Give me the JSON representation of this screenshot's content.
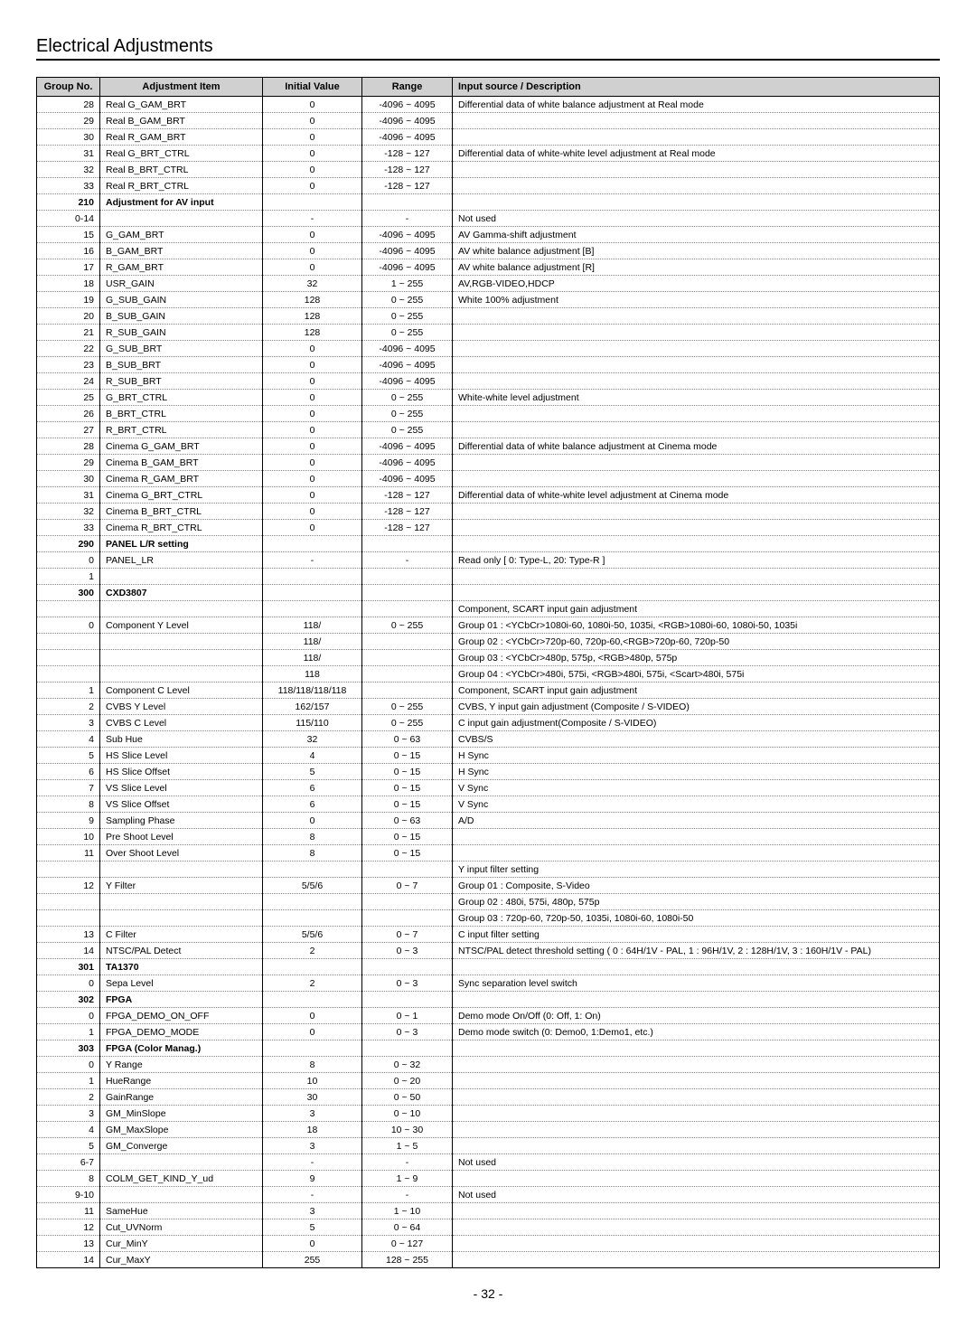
{
  "page_title": "Electrical Adjustments",
  "page_number": "- 32 -",
  "headers": {
    "group": "Group No.",
    "item": "Adjustment Item",
    "init": "Initial Value",
    "range": "Range",
    "desc": "Input source / Description"
  },
  "rows": [
    {
      "g": "28",
      "i": "Real G_GAM_BRT",
      "v": "0",
      "r": "-4096 ~ 4095",
      "d": "Differential data of white balance adjustment at Real mode"
    },
    {
      "g": "29",
      "i": "Real B_GAM_BRT",
      "v": "0",
      "r": "-4096 ~ 4095",
      "d": ""
    },
    {
      "g": "30",
      "i": "Real R_GAM_BRT",
      "v": "0",
      "r": "-4096 ~ 4095",
      "d": ""
    },
    {
      "g": "31",
      "i": "Real G_BRT_CTRL",
      "v": "0",
      "r": "-128 ~ 127",
      "d": "Differential data of white-white level adjustment at Real mode"
    },
    {
      "g": "32",
      "i": "Real B_BRT_CTRL",
      "v": "0",
      "r": "-128 ~ 127",
      "d": ""
    },
    {
      "g": "33",
      "i": "Real R_BRT_CTRL",
      "v": "0",
      "r": "-128 ~ 127",
      "d": ""
    },
    {
      "g": "210",
      "i": "Adjustment for AV input",
      "v": "",
      "r": "",
      "d": "",
      "bold": true,
      "gb": true
    },
    {
      "g": "0-14",
      "i": "",
      "v": "-",
      "r": "-",
      "d": "Not used"
    },
    {
      "g": "15",
      "i": "G_GAM_BRT",
      "v": "0",
      "r": "-4096 ~ 4095",
      "d": "AV Gamma-shift adjustment"
    },
    {
      "g": "16",
      "i": "B_GAM_BRT",
      "v": "0",
      "r": "-4096 ~ 4095",
      "d": "AV white balance adjustment [B]"
    },
    {
      "g": "17",
      "i": "R_GAM_BRT",
      "v": "0",
      "r": "-4096 ~ 4095",
      "d": "AV white balance adjustment [R]"
    },
    {
      "g": "18",
      "i": "USR_GAIN",
      "v": "32",
      "r": "1 ~ 255",
      "d": "AV,RGB-VIDEO,HDCP"
    },
    {
      "g": "19",
      "i": "G_SUB_GAIN",
      "v": "128",
      "r": "0 ~ 255",
      "d": "White 100% adjustment"
    },
    {
      "g": "20",
      "i": "B_SUB_GAIN",
      "v": "128",
      "r": "0 ~ 255",
      "d": ""
    },
    {
      "g": "21",
      "i": "R_SUB_GAIN",
      "v": "128",
      "r": "0 ~ 255",
      "d": ""
    },
    {
      "g": "22",
      "i": "G_SUB_BRT",
      "v": "0",
      "r": "-4096 ~ 4095",
      "d": ""
    },
    {
      "g": "23",
      "i": "B_SUB_BRT",
      "v": "0",
      "r": "-4096 ~ 4095",
      "d": ""
    },
    {
      "g": "24",
      "i": "R_SUB_BRT",
      "v": "0",
      "r": "-4096 ~ 4095",
      "d": ""
    },
    {
      "g": "25",
      "i": "G_BRT_CTRL",
      "v": "0",
      "r": "0 ~ 255",
      "d": "White-white level adjustment"
    },
    {
      "g": "26",
      "i": "B_BRT_CTRL",
      "v": "0",
      "r": "0 ~ 255",
      "d": ""
    },
    {
      "g": "27",
      "i": "R_BRT_CTRL",
      "v": "0",
      "r": "0 ~ 255",
      "d": ""
    },
    {
      "g": "28",
      "i": "Cinema G_GAM_BRT",
      "v": "0",
      "r": "-4096 ~ 4095",
      "d": "Differential data of white balance adjustment at Cinema mode"
    },
    {
      "g": "29",
      "i": "Cinema B_GAM_BRT",
      "v": "0",
      "r": "-4096 ~ 4095",
      "d": ""
    },
    {
      "g": "30",
      "i": "Cinema R_GAM_BRT",
      "v": "0",
      "r": "-4096 ~ 4095",
      "d": ""
    },
    {
      "g": "31",
      "i": "Cinema G_BRT_CTRL",
      "v": "0",
      "r": "-128 ~ 127",
      "d": "Differential data of white-white level adjustment at Cinema mode"
    },
    {
      "g": "32",
      "i": "Cinema B_BRT_CTRL",
      "v": "0",
      "r": "-128 ~ 127",
      "d": ""
    },
    {
      "g": "33",
      "i": "Cinema R_BRT_CTRL",
      "v": "0",
      "r": "-128 ~ 127",
      "d": ""
    },
    {
      "g": "290",
      "i": "PANEL L/R setting",
      "v": "",
      "r": "",
      "d": "",
      "bold": true,
      "gb": true
    },
    {
      "g": "0",
      "i": "PANEL_LR",
      "v": "-",
      "r": "-",
      "d": "Read only [ 0: Type-L, 20: Type-R ]"
    },
    {
      "g": "1",
      "i": "",
      "v": "",
      "r": "",
      "d": ""
    },
    {
      "g": "300",
      "i": "CXD3807",
      "v": "",
      "r": "",
      "d": "",
      "bold": true,
      "gb": true
    },
    {
      "g": "",
      "i": "",
      "v": "",
      "r": "",
      "d": "Component, SCART input gain adjustment"
    },
    {
      "g": "0",
      "i": "Component Y Level",
      "v": "118/",
      "r": "0 ~ 255",
      "d": "  Group 01 : <YCbCr>1080i-60, 1080i-50, 1035i, <RGB>1080i-60, 1080i-50, 1035i"
    },
    {
      "g": "",
      "i": "",
      "v": "118/",
      "r": "",
      "d": "  Group 02 : <YCbCr>720p-60, 720p-60,<RGB>720p-60, 720p-50"
    },
    {
      "g": "",
      "i": "",
      "v": "118/",
      "r": "",
      "d": "  Group 03 : <YCbCr>480p, 575p, <RGB>480p, 575p"
    },
    {
      "g": "",
      "i": "",
      "v": "118",
      "r": "",
      "d": "  Group 04 : <YCbCr>480i, 575i, <RGB>480i, 575i, <Scart>480i, 575i"
    },
    {
      "g": "1",
      "i": "Component C Level",
      "v": "118/118/118/118",
      "r": "",
      "d": "Component, SCART input gain adjustment"
    },
    {
      "g": "2",
      "i": "CVBS Y Level",
      "v": "162/157",
      "r": "0 ~ 255",
      "d": "CVBS, Y input gain adjustment (Composite / S-VIDEO)"
    },
    {
      "g": "3",
      "i": "CVBS C Level",
      "v": "115/110",
      "r": "0 ~ 255",
      "d": "C input gain adjustment(Composite / S-VIDEO)"
    },
    {
      "g": "4",
      "i": "Sub Hue",
      "v": "32",
      "r": "0 ~ 63",
      "d": "CVBS/S"
    },
    {
      "g": "5",
      "i": "HS Slice Level",
      "v": "4",
      "r": "0 ~ 15",
      "d": "H Sync"
    },
    {
      "g": "6",
      "i": "HS Slice Offset",
      "v": "5",
      "r": "0 ~ 15",
      "d": "H Sync"
    },
    {
      "g": "7",
      "i": "VS Slice Level",
      "v": "6",
      "r": "0 ~ 15",
      "d": "V Sync"
    },
    {
      "g": "8",
      "i": "VS Slice Offset",
      "v": "6",
      "r": "0 ~ 15",
      "d": "V Sync"
    },
    {
      "g": "9",
      "i": "Sampling Phase",
      "v": "0",
      "r": "0 ~ 63",
      "d": "A/D"
    },
    {
      "g": "10",
      "i": "Pre Shoot Level",
      "v": "8",
      "r": "0 ~ 15",
      "d": ""
    },
    {
      "g": "11",
      "i": "Over Shoot Level",
      "v": "8",
      "r": "0 ~ 15",
      "d": ""
    },
    {
      "g": "",
      "i": "",
      "v": "",
      "r": "",
      "d": "Y input filter setting"
    },
    {
      "g": "12",
      "i": "Y Filter",
      "v": "5/5/6",
      "r": "0 ~ 7",
      "d": "  Group 01 : Composite, S-Video"
    },
    {
      "g": "",
      "i": "",
      "v": "",
      "r": "",
      "d": "  Group 02 : 480i, 575i, 480p, 575p"
    },
    {
      "g": "",
      "i": "",
      "v": "",
      "r": "",
      "d": "  Group 03 : 720p-60, 720p-50, 1035i, 1080i-60, 1080i-50"
    },
    {
      "g": "13",
      "i": "C Filter",
      "v": "5/5/6",
      "r": "0 ~ 7",
      "d": "C input filter setting"
    },
    {
      "g": "14",
      "i": "NTSC/PAL Detect",
      "v": "2",
      "r": "0 ~ 3",
      "d": "NTSC/PAL detect threshold setting ( 0 : 64H/1V  - PAL, 1 : 96H/1V,  2 : 128H/1V, 3 : 160H/1V - PAL)"
    },
    {
      "g": "301",
      "i": "TA1370",
      "v": "",
      "r": "",
      "d": "",
      "bold": true,
      "gb": true
    },
    {
      "g": "0",
      "i": "Sepa Level",
      "v": "2",
      "r": "0 ~ 3",
      "d": "Sync separation level switch"
    },
    {
      "g": "302",
      "i": "FPGA",
      "v": "",
      "r": "",
      "d": "",
      "bold": true,
      "gb": true
    },
    {
      "g": "0",
      "i": "FPGA_DEMO_ON_OFF",
      "v": "0",
      "r": "0 ~ 1",
      "d": "Demo mode On/Off (0: Off, 1: On)"
    },
    {
      "g": "1",
      "i": "FPGA_DEMO_MODE",
      "v": "0",
      "r": "0 ~ 3",
      "d": "Demo mode switch (0: Demo0, 1:Demo1, etc.)"
    },
    {
      "g": "303",
      "i": "FPGA (Color Manag.)",
      "v": "",
      "r": "",
      "d": "",
      "bold": true,
      "gb": true
    },
    {
      "g": "0",
      "i": "Y Range",
      "v": "8",
      "r": "0 ~ 32",
      "d": ""
    },
    {
      "g": "1",
      "i": "HueRange",
      "v": "10",
      "r": "0 ~ 20",
      "d": ""
    },
    {
      "g": "2",
      "i": "GainRange",
      "v": "30",
      "r": "0 ~ 50",
      "d": ""
    },
    {
      "g": "3",
      "i": "GM_MinSlope",
      "v": "3",
      "r": "0 ~ 10",
      "d": ""
    },
    {
      "g": "4",
      "i": "GM_MaxSlope",
      "v": "18",
      "r": "10 ~ 30",
      "d": ""
    },
    {
      "g": "5",
      "i": "GM_Converge",
      "v": "3",
      "r": "1 ~ 5",
      "d": ""
    },
    {
      "g": "6-7",
      "i": "",
      "v": "-",
      "r": "-",
      "d": "Not used"
    },
    {
      "g": "8",
      "i": "COLM_GET_KIND_Y_ud",
      "v": "9",
      "r": "1 ~ 9",
      "d": ""
    },
    {
      "g": "9-10",
      "i": "",
      "v": "-",
      "r": "-",
      "d": "Not used"
    },
    {
      "g": "11",
      "i": "SameHue",
      "v": "3",
      "r": "1 ~ 10",
      "d": ""
    },
    {
      "g": "12",
      "i": "Cut_UVNorm",
      "v": "5",
      "r": "0 ~ 64",
      "d": ""
    },
    {
      "g": "13",
      "i": "Cur_MinY",
      "v": "0",
      "r": "0 ~ 127",
      "d": ""
    },
    {
      "g": "14",
      "i": "Cur_MaxY",
      "v": "255",
      "r": "128 ~ 255",
      "d": "",
      "last": true
    }
  ]
}
